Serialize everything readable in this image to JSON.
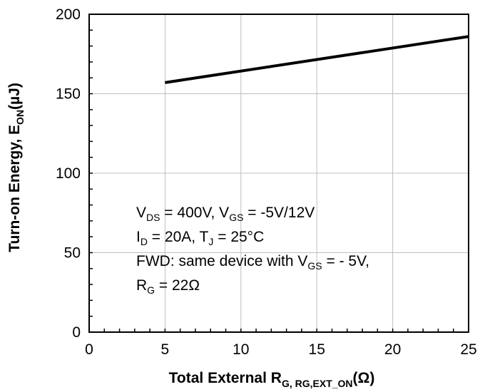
{
  "chart_data": {
    "type": "line",
    "xlabel": "Total External R",
    "xlabel_sub": "G, RG,EXT_ON",
    "xlabel_unit": "(Ω)",
    "ylabel": "Turn-on Energy, E",
    "ylabel_sub": "ON",
    "ylabel_unit": "(µJ)",
    "xlim": [
      0,
      25
    ],
    "ylim": [
      0,
      200
    ],
    "x_ticks": [
      "0",
      "5",
      "10",
      "15",
      "20",
      "25"
    ],
    "y_ticks": [
      "0",
      "50",
      "100",
      "150",
      "200"
    ],
    "grid": true,
    "series": [
      {
        "x": [
          5,
          25
        ],
        "y": [
          157,
          186
        ],
        "color": "#000000"
      }
    ],
    "annotation": {
      "line1": {
        "a": "V",
        "a_sub": "DS",
        "b": " = 400V, V",
        "b_sub": "GS",
        "c": " = -5V/12V"
      },
      "line2": {
        "a": "I",
        "a_sub": "D",
        "b": " = 20A, T",
        "b_sub": "J",
        "c": " = 25°C"
      },
      "line3": {
        "a": "FWD: same device with V",
        "a_sub": "GS",
        "b": " = - 5V,"
      },
      "line4": {
        "a": "R",
        "a_sub": "G",
        "b": " = 22Ω"
      }
    }
  }
}
